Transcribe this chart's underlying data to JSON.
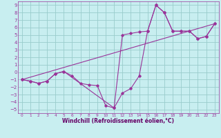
{
  "xlabel": "Windchill (Refroidissement éolien,°C)",
  "background_color": "#c8eef0",
  "line_color": "#993399",
  "grid_color": "#99cccc",
  "xlim": [
    -0.5,
    23.5
  ],
  "ylim": [
    -5.5,
    9.5
  ],
  "xticks": [
    0,
    1,
    2,
    3,
    4,
    5,
    6,
    7,
    8,
    9,
    10,
    11,
    12,
    13,
    14,
    15,
    16,
    17,
    18,
    19,
    20,
    21,
    22,
    23
  ],
  "yticks": [
    -5,
    -4,
    -3,
    -2,
    -1,
    0,
    1,
    2,
    3,
    4,
    5,
    6,
    7,
    8,
    9
  ],
  "series1_x": [
    0,
    1,
    2,
    3,
    4,
    5,
    6,
    7,
    8,
    9,
    10,
    11,
    12,
    13,
    14,
    15,
    16,
    17,
    18,
    19,
    20,
    21,
    22,
    23
  ],
  "series1_y": [
    -1,
    -1.2,
    -1.5,
    -1.2,
    -0.2,
    0.1,
    -0.5,
    -1.5,
    -1.7,
    -1.8,
    -4.5,
    -4.8,
    -2.8,
    -2.2,
    -0.5,
    5.5,
    9.0,
    8.0,
    5.5,
    5.5,
    5.5,
    4.5,
    4.8,
    6.5
  ],
  "series2_x": [
    0,
    23
  ],
  "series2_y": [
    -1,
    6.5
  ],
  "series3_x": [
    0,
    1,
    2,
    3,
    4,
    5,
    11,
    12,
    13,
    14,
    15,
    16,
    17,
    18,
    19,
    20,
    21,
    22,
    23
  ],
  "series3_y": [
    -1,
    -1.2,
    -1.5,
    -1.2,
    -0.2,
    0.1,
    -4.8,
    5.0,
    5.2,
    5.4,
    5.5,
    9.0,
    8.0,
    5.5,
    5.5,
    5.5,
    4.5,
    4.8,
    6.5
  ],
  "xlabel_fontsize": 5.5,
  "tick_fontsize_x": 4.2,
  "tick_fontsize_y": 5.0,
  "tick_color": "#993399",
  "label_color": "#660066"
}
